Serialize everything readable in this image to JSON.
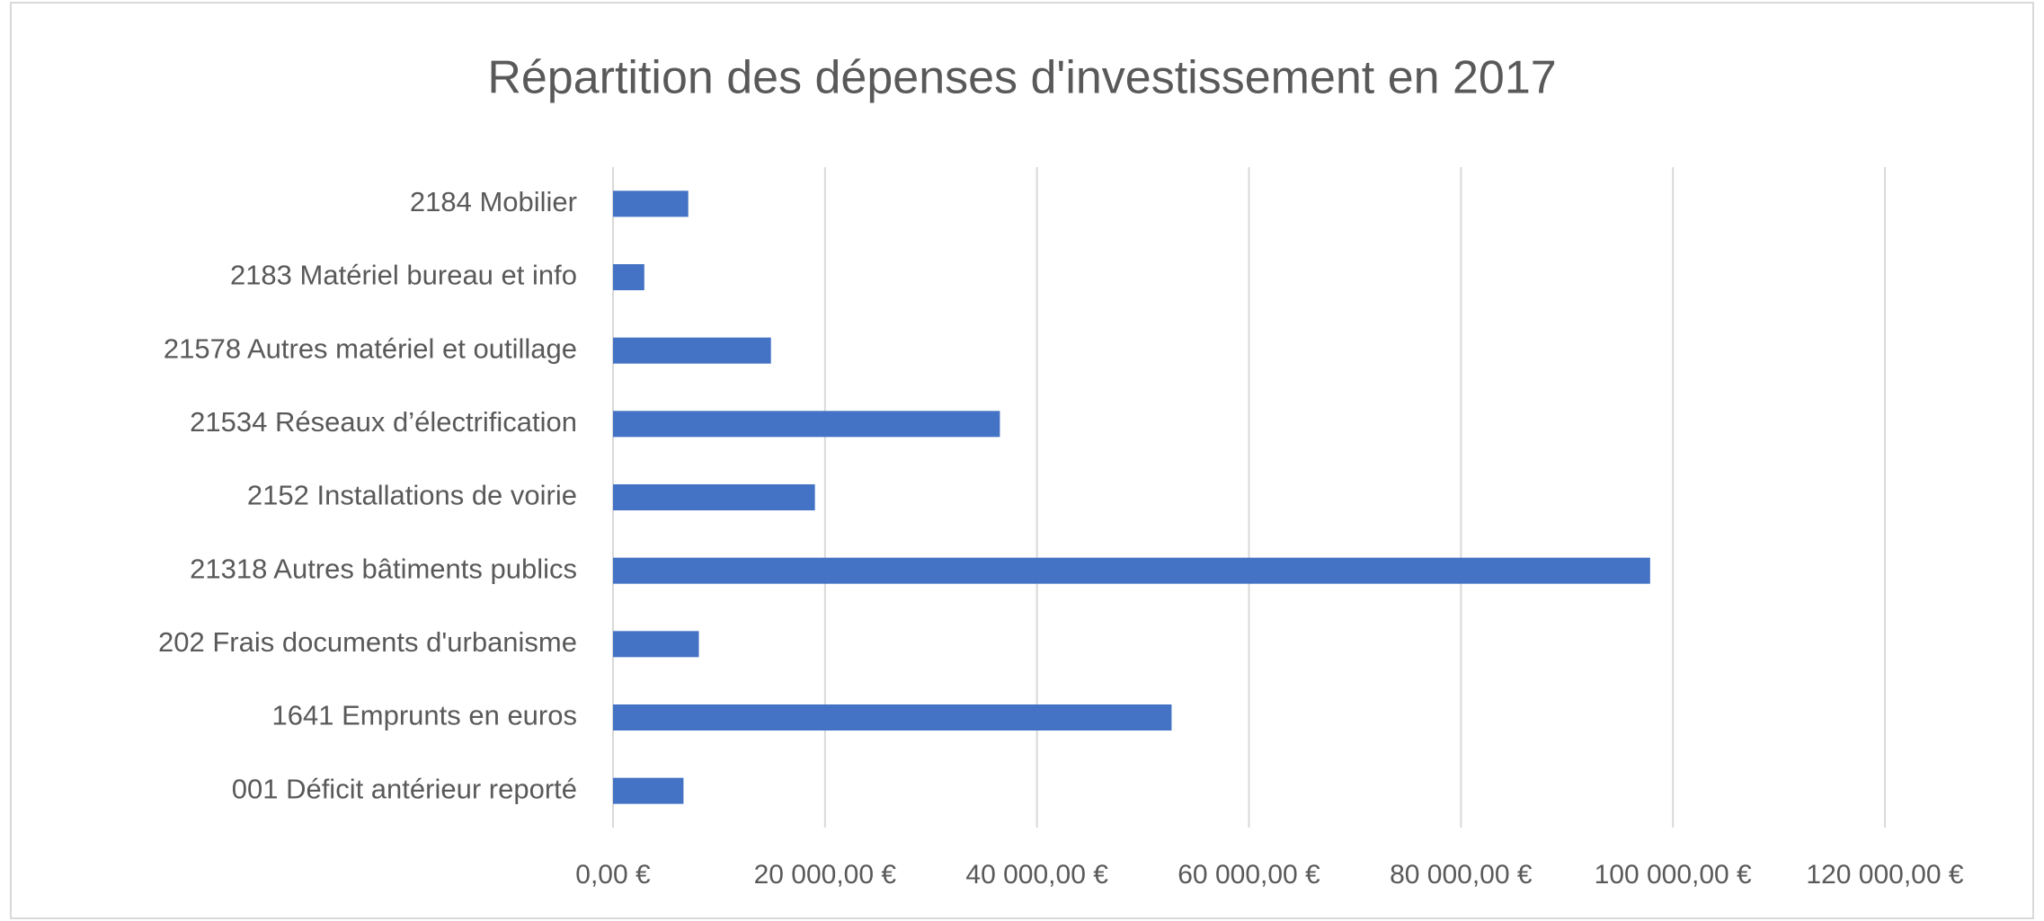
{
  "chart_data": {
    "type": "bar",
    "orientation": "horizontal",
    "title": "Répartition des dépenses d'investissement en 2017",
    "categories": [
      "2184 Mobilier",
      "2183 Matériel bureau et info",
      "21578 Autres matériel et outillage",
      "21534 Réseaux d’électrification",
      "2152 Installations de voirie",
      "21318 Autres bâtiments publics",
      "202 Frais documents d'urbanisme",
      "1641 Emprunts en euros",
      "001 Déficit antérieur reporté"
    ],
    "values": [
      7100,
      2950,
      14900,
      36500,
      19050,
      97850,
      8100,
      52700,
      6650
    ],
    "color": "#4472c4",
    "xlim": [
      0,
      120000
    ],
    "xticks": [
      {
        "value": 0,
        "label": "0,00 €"
      },
      {
        "value": 20000,
        "label": "20 000,00 €"
      },
      {
        "value": 40000,
        "label": "40 000,00 €"
      },
      {
        "value": 60000,
        "label": "60 000,00 €"
      },
      {
        "value": 80000,
        "label": "80 000,00 €"
      },
      {
        "value": 100000,
        "label": "100 000,00 €"
      },
      {
        "value": 120000,
        "label": "120 000,00 €"
      }
    ],
    "grid": true
  }
}
